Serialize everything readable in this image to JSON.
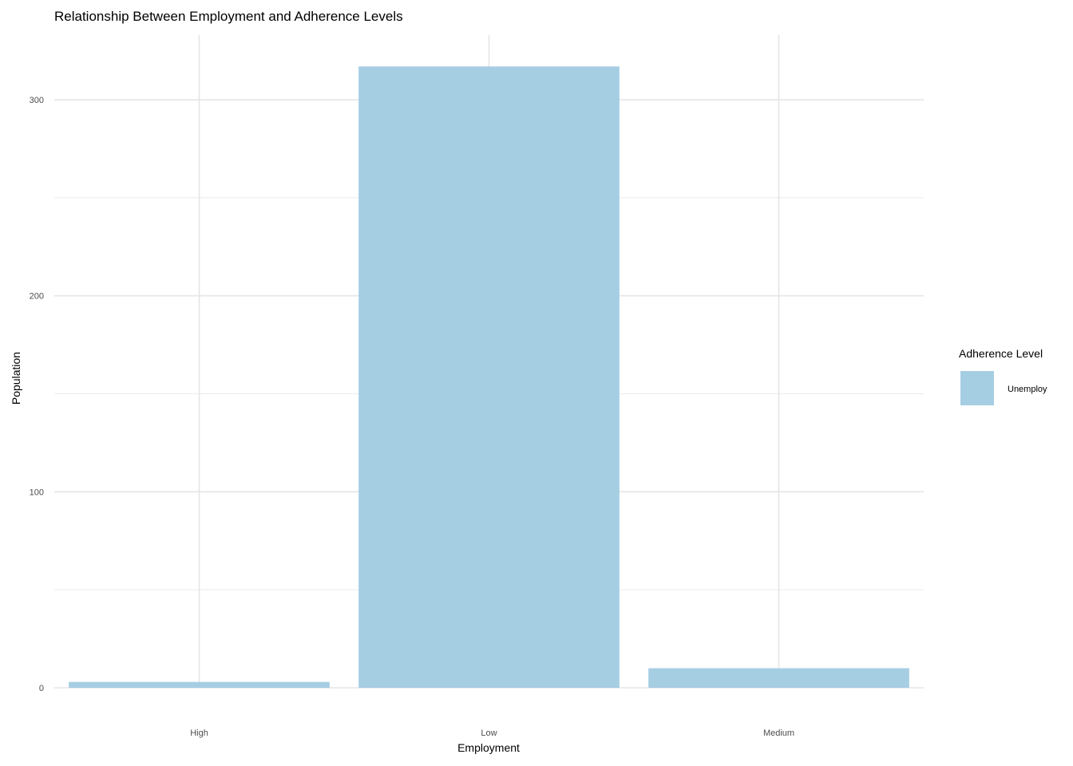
{
  "chart_data": {
    "type": "bar",
    "title": "Relationship Between Employment and Adherence Levels",
    "xlabel": "Employment",
    "ylabel": "Population",
    "categories": [
      "High",
      "Low",
      "Medium"
    ],
    "series": [
      {
        "name": "Unemploy",
        "values": [
          3,
          317,
          10
        ],
        "color": "#a6cee3"
      }
    ],
    "ylim": [
      0,
      333
    ],
    "yticks": [
      0,
      100,
      200,
      300
    ],
    "grid": true,
    "legend": {
      "title": "Adherence Level",
      "position": "right"
    }
  }
}
